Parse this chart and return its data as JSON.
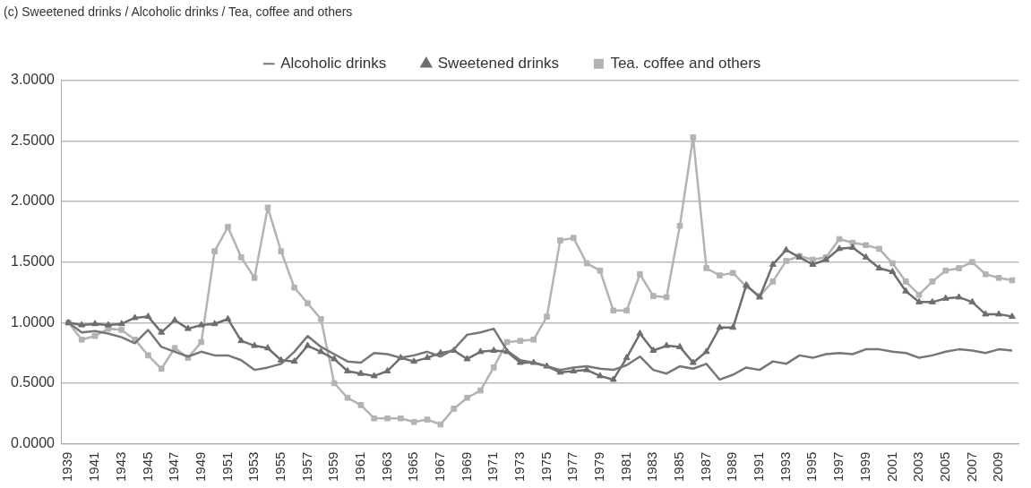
{
  "chart_data": {
    "type": "line",
    "title": "(c) Sweetened drinks / Alcoholic drinks / Tea, coffee and others",
    "categories": [
      "1939",
      null,
      "1941",
      null,
      "1943",
      null,
      "1945",
      null,
      "1947",
      null,
      "1949",
      null,
      "1951",
      null,
      "1953",
      null,
      "1955",
      null,
      "1957",
      null,
      "1959",
      null,
      "1961",
      null,
      "1963",
      null,
      "1965",
      null,
      "1967",
      null,
      "1969",
      null,
      "1971",
      null,
      "1973",
      null,
      "1975",
      null,
      "1977",
      null,
      "1979",
      null,
      "1981",
      null,
      "1983",
      null,
      "1985",
      null,
      "1987",
      null,
      "1989",
      null,
      "1991",
      null,
      "1993",
      null,
      "1995",
      null,
      "1997",
      null,
      "1999",
      null,
      "2001",
      null,
      "2003",
      null,
      "2005",
      null,
      "2007",
      null,
      "2009",
      null
    ],
    "series": [
      {
        "name": "Alcoholic drinks",
        "color": "#777777",
        "marker": "none",
        "values": [
          1.0,
          0.92,
          0.93,
          0.91,
          0.88,
          0.83,
          0.94,
          0.8,
          0.76,
          0.72,
          0.76,
          0.73,
          0.73,
          0.69,
          0.61,
          0.63,
          0.66,
          0.76,
          0.89,
          0.8,
          0.74,
          0.68,
          0.67,
          0.75,
          0.74,
          0.71,
          0.73,
          0.76,
          0.72,
          0.78,
          0.9,
          0.92,
          0.95,
          0.77,
          0.69,
          0.67,
          0.64,
          0.61,
          0.63,
          0.64,
          0.62,
          0.61,
          0.65,
          0.72,
          0.61,
          0.58,
          0.64,
          0.62,
          0.66,
          0.53,
          0.57,
          0.63,
          0.61,
          0.68,
          0.66,
          0.73,
          0.71,
          0.74,
          0.75,
          0.74,
          0.78,
          0.78,
          0.76,
          0.75,
          0.71,
          0.73,
          0.76,
          0.78,
          0.77,
          0.75,
          0.78,
          0.77
        ]
      },
      {
        "name": "Sweetened drinks",
        "color": "#6e6e6e",
        "marker": "triangle",
        "values": [
          1.0,
          0.98,
          0.99,
          0.98,
          0.99,
          1.04,
          1.05,
          0.92,
          1.02,
          0.95,
          0.98,
          0.99,
          1.03,
          0.85,
          0.81,
          0.79,
          0.69,
          0.68,
          0.81,
          0.76,
          0.7,
          0.6,
          0.58,
          0.56,
          0.6,
          0.71,
          0.68,
          0.71,
          0.75,
          0.77,
          0.7,
          0.76,
          0.77,
          0.76,
          0.67,
          0.67,
          0.64,
          0.59,
          0.6,
          0.61,
          0.56,
          0.53,
          0.71,
          0.91,
          0.77,
          0.81,
          0.8,
          0.67,
          0.76,
          0.96,
          0.96,
          1.31,
          1.21,
          1.48,
          1.6,
          1.54,
          1.48,
          1.52,
          1.61,
          1.62,
          1.54,
          1.45,
          1.42,
          1.26,
          1.17,
          1.17,
          1.2,
          1.21,
          1.17,
          1.07,
          1.07,
          1.05
        ]
      },
      {
        "name": "Tea. coffee and others",
        "color": "#b3b3b3",
        "marker": "square",
        "values": [
          1.0,
          0.86,
          0.89,
          0.95,
          0.94,
          0.86,
          0.73,
          0.62,
          0.79,
          0.71,
          0.84,
          1.59,
          1.79,
          1.54,
          1.37,
          1.95,
          1.59,
          1.29,
          1.16,
          1.03,
          0.5,
          0.38,
          0.32,
          0.21,
          0.21,
          0.21,
          0.18,
          0.2,
          0.16,
          0.29,
          0.38,
          0.44,
          0.63,
          0.84,
          0.85,
          0.86,
          1.05,
          1.68,
          1.7,
          1.49,
          1.43,
          1.1,
          1.1,
          1.4,
          1.22,
          1.21,
          1.8,
          2.53,
          1.45,
          1.39,
          1.41,
          1.3,
          1.22,
          1.34,
          1.51,
          1.55,
          1.52,
          1.54,
          1.69,
          1.66,
          1.64,
          1.61,
          1.49,
          1.34,
          1.23,
          1.34,
          1.43,
          1.45,
          1.5,
          1.4,
          1.37,
          1.35
        ]
      }
    ],
    "ylim": [
      0,
      3
    ],
    "yticks": [
      {
        "value": 0,
        "label": "0.0000"
      },
      {
        "value": 0.5,
        "label": "0.5000"
      },
      {
        "value": 1,
        "label": "1.0000"
      },
      {
        "value": 1.5,
        "label": "1.5000"
      },
      {
        "value": 2,
        "label": "2.0000"
      },
      {
        "value": 2.5,
        "label": "2.5000"
      },
      {
        "value": 3,
        "label": "3.0000"
      }
    ],
    "grid": "y",
    "legend": "top",
    "line_style": "solid"
  }
}
